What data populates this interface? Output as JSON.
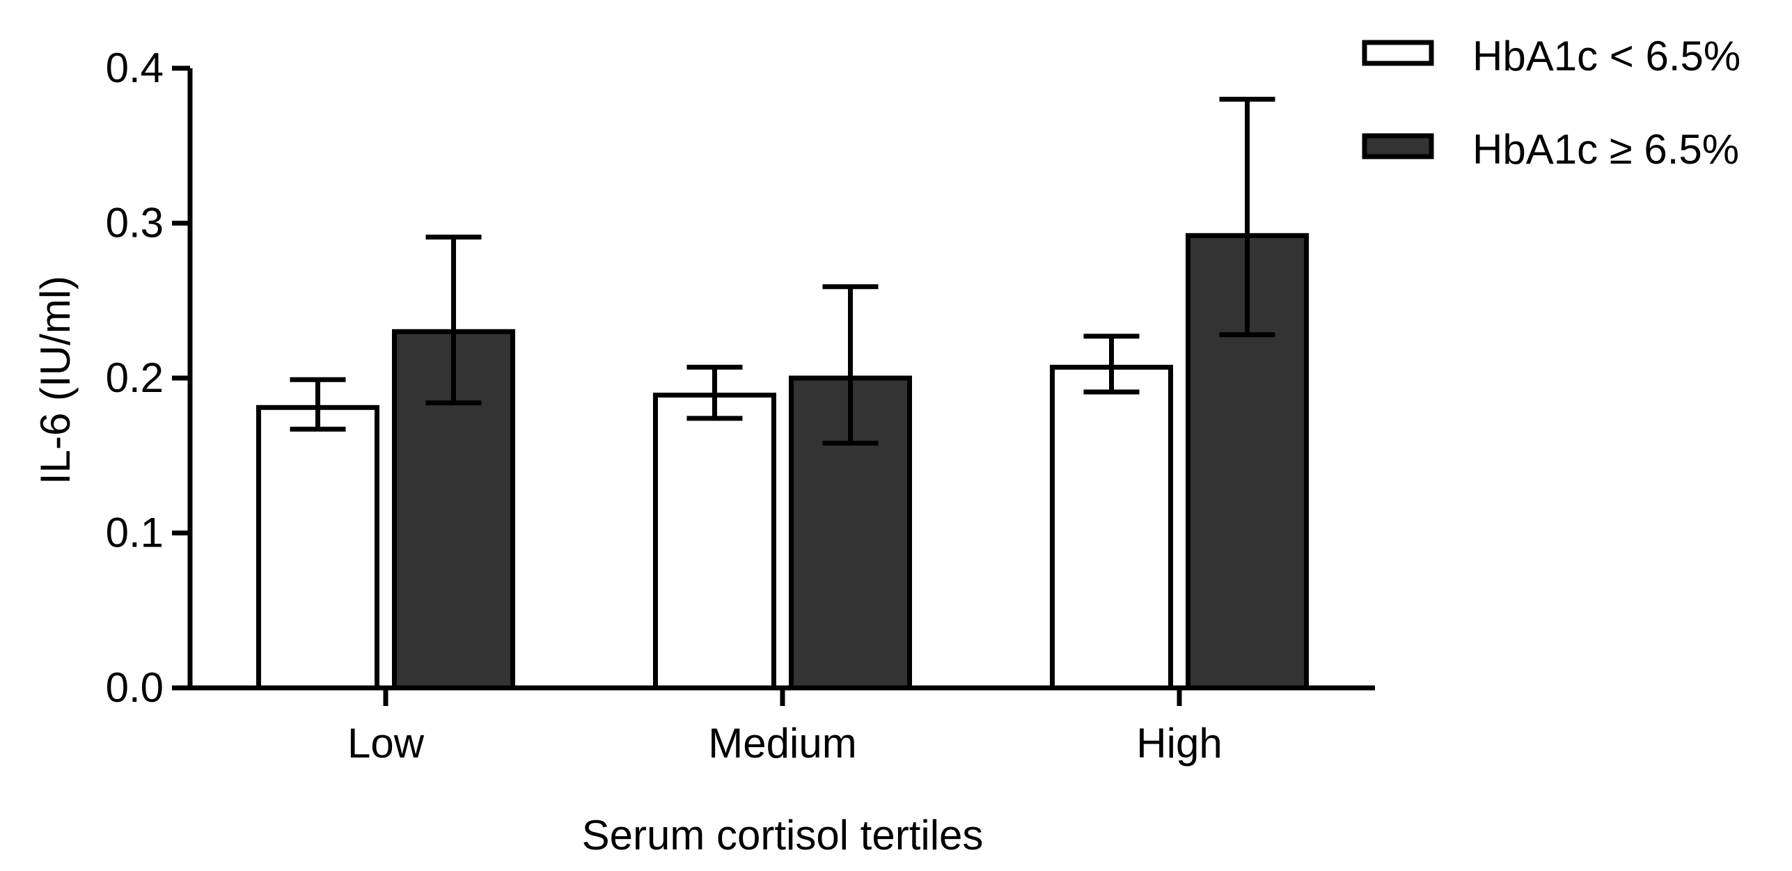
{
  "chart_data": {
    "type": "bar",
    "title": "",
    "xlabel": "Serum cortisol tertiles",
    "ylabel": "IL-6 (IU/ml)",
    "ylim": [
      0,
      0.4
    ],
    "yticks": [
      0.0,
      0.1,
      0.2,
      0.3,
      0.4
    ],
    "ytick_labels": [
      "0.0",
      "0.1",
      "0.2",
      "0.3",
      "0.4"
    ],
    "categories": [
      "Low",
      "Medium",
      "High"
    ],
    "legend_position": "top-right",
    "series": [
      {
        "name": "HbA1c < 6.5%",
        "color": "#ffffff",
        "values": [
          0.181,
          0.189,
          0.207
        ],
        "err_low": [
          0.167,
          0.174,
          0.191
        ],
        "err_high": [
          0.199,
          0.207,
          0.227
        ]
      },
      {
        "name": "HbA1c ≥ 6.5%",
        "color": "#333333",
        "values": [
          0.23,
          0.2,
          0.292
        ],
        "err_low": [
          0.184,
          0.158,
          0.228
        ],
        "err_high": [
          0.291,
          0.259,
          0.38
        ]
      }
    ]
  }
}
